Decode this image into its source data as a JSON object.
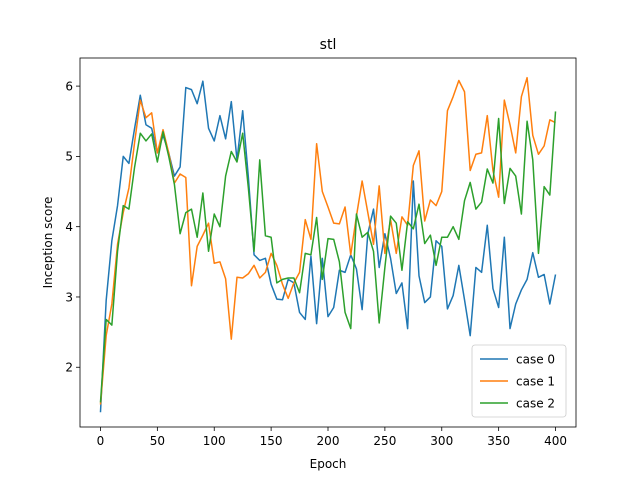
{
  "chart_data": {
    "type": "line",
    "title": "stl",
    "xlabel": "Epoch",
    "ylabel": "Inception score",
    "xlim": [
      -18,
      418
    ],
    "ylim": [
      1.15,
      6.4
    ],
    "xticks": [
      0,
      50,
      100,
      150,
      200,
      250,
      300,
      350,
      400
    ],
    "yticks": [
      2,
      3,
      4,
      5,
      6
    ],
    "x": [
      0,
      5,
      10,
      15,
      20,
      25,
      30,
      35,
      40,
      45,
      50,
      55,
      60,
      65,
      70,
      75,
      80,
      85,
      90,
      95,
      100,
      105,
      110,
      115,
      120,
      125,
      130,
      135,
      140,
      145,
      150,
      155,
      160,
      165,
      170,
      175,
      180,
      185,
      190,
      195,
      200,
      205,
      210,
      215,
      220,
      225,
      230,
      235,
      240,
      245,
      250,
      255,
      260,
      265,
      270,
      275,
      280,
      285,
      290,
      295,
      300,
      305,
      310,
      315,
      320,
      325,
      330,
      335,
      340,
      345,
      350,
      355,
      360,
      365,
      370,
      375,
      380,
      385,
      390,
      395,
      400
    ],
    "series": [
      {
        "name": "case 0",
        "color": "#1f77b4",
        "values": [
          1.36,
          2.95,
          3.8,
          4.3,
          5.0,
          4.9,
          5.4,
          5.87,
          5.45,
          5.4,
          5.05,
          5.3,
          5.05,
          4.72,
          4.85,
          5.98,
          5.95,
          5.75,
          6.07,
          5.4,
          5.22,
          5.58,
          5.25,
          5.78,
          4.95,
          5.65,
          4.7,
          3.6,
          3.52,
          3.55,
          3.18,
          2.97,
          2.96,
          3.25,
          3.2,
          2.78,
          2.68,
          3.58,
          2.62,
          3.55,
          2.72,
          2.85,
          3.38,
          3.35,
          3.6,
          3.4,
          2.82,
          3.9,
          4.25,
          3.42,
          3.9,
          3.55,
          3.05,
          3.2,
          2.55,
          4.65,
          3.3,
          2.92,
          3.0,
          3.8,
          3.72,
          2.83,
          3.02,
          3.45,
          2.96,
          2.45,
          3.42,
          3.35,
          4.02,
          3.12,
          2.85,
          3.85,
          2.55,
          2.9,
          3.1,
          3.25,
          3.63,
          3.28,
          3.32,
          2.9,
          3.32
        ]
      },
      {
        "name": "case 1",
        "color": "#ff7f0e",
        "values": [
          1.47,
          2.45,
          2.9,
          3.75,
          4.2,
          4.55,
          5.2,
          5.8,
          5.55,
          5.62,
          5.05,
          5.38,
          5.05,
          4.62,
          4.75,
          4.7,
          3.16,
          3.72,
          3.88,
          4.05,
          3.48,
          3.5,
          3.26,
          2.4,
          3.28,
          3.27,
          3.33,
          3.45,
          3.27,
          3.35,
          3.62,
          3.45,
          3.18,
          2.98,
          3.2,
          3.35,
          4.1,
          3.82,
          5.18,
          4.5,
          4.28,
          4.05,
          4.04,
          4.28,
          3.6,
          4.15,
          4.65,
          4.2,
          3.75,
          4.58,
          3.62,
          4.1,
          3.62,
          4.14,
          4.02,
          4.87,
          5.08,
          4.08,
          4.38,
          4.3,
          4.5,
          5.65,
          5.85,
          6.08,
          5.92,
          4.8,
          5.03,
          5.05,
          5.58,
          4.8,
          4.42,
          5.8,
          5.45,
          5.05,
          5.85,
          6.12,
          5.3,
          5.03,
          5.15,
          5.52,
          5.48
        ]
      },
      {
        "name": "case 2",
        "color": "#2ca02c",
        "values": [
          1.5,
          2.68,
          2.6,
          3.65,
          4.3,
          4.25,
          4.85,
          5.33,
          5.22,
          5.32,
          4.92,
          5.35,
          5.0,
          4.6,
          3.9,
          4.2,
          4.25,
          3.85,
          4.48,
          3.65,
          4.18,
          4.0,
          4.72,
          5.07,
          4.92,
          5.33,
          4.55,
          3.65,
          4.95,
          3.87,
          3.85,
          3.2,
          3.25,
          3.27,
          3.27,
          3.06,
          3.62,
          3.6,
          4.13,
          3.25,
          3.83,
          3.82,
          3.5,
          2.78,
          2.55,
          4.18,
          3.85,
          3.92,
          3.65,
          2.63,
          3.42,
          4.15,
          4.05,
          3.38,
          4.07,
          3.97,
          4.32,
          3.76,
          3.88,
          3.45,
          3.85,
          3.85,
          4.0,
          3.82,
          4.37,
          4.63,
          4.25,
          4.35,
          4.82,
          4.62,
          5.54,
          4.33,
          4.83,
          4.72,
          4.18,
          5.5,
          4.95,
          3.62,
          4.57,
          4.45,
          5.64
        ]
      }
    ],
    "legend_position": "lower right"
  }
}
